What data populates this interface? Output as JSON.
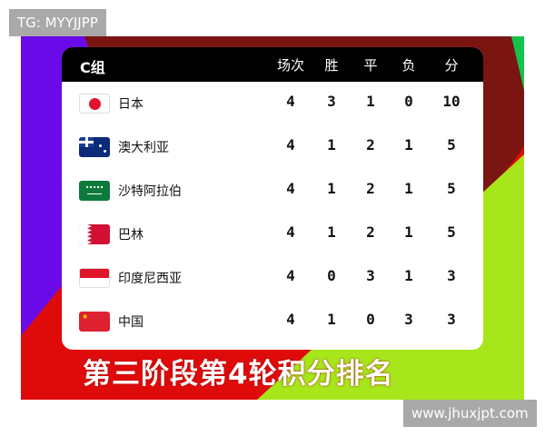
{
  "watermark_top": "TG: MYYJJPP",
  "watermark_bottom": "www.jhuxjpt.com",
  "table": {
    "group": "C组",
    "columns": [
      "场次",
      "胜",
      "平",
      "负",
      "分"
    ],
    "rows": [
      {
        "team": "日本",
        "flag": "japan-flag",
        "stats": [
          "4",
          "3",
          "1",
          "0",
          "10"
        ]
      },
      {
        "team": "澳大利亚",
        "flag": "australia-flag",
        "stats": [
          "4",
          "1",
          "2",
          "1",
          "5"
        ]
      },
      {
        "team": "沙特阿拉伯",
        "flag": "saudi-arabia-flag",
        "stats": [
          "4",
          "1",
          "2",
          "1",
          "5"
        ]
      },
      {
        "team": "巴林",
        "flag": "bahrain-flag",
        "stats": [
          "4",
          "1",
          "2",
          "1",
          "5"
        ]
      },
      {
        "team": "印度尼西亚",
        "flag": "indonesia-flag",
        "stats": [
          "4",
          "0",
          "3",
          "1",
          "3"
        ]
      },
      {
        "team": "中国",
        "flag": "china-flag",
        "stats": [
          "4",
          "1",
          "0",
          "3",
          "3"
        ]
      }
    ]
  },
  "caption": "第三阶段第4轮积分排名"
}
